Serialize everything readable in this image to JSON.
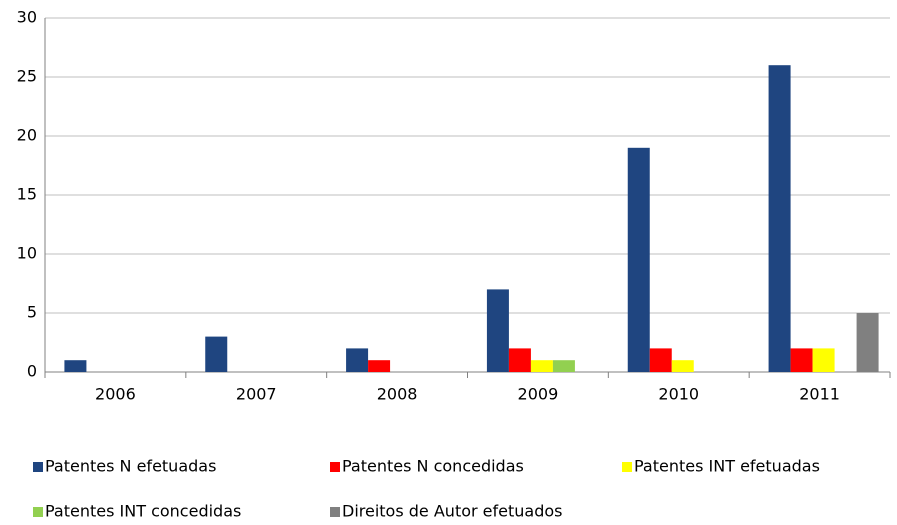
{
  "chart_data": {
    "type": "bar",
    "categories": [
      "2006",
      "2007",
      "2008",
      "2009",
      "2010",
      "2011"
    ],
    "series": [
      {
        "name": "Patentes N efetuadas",
        "color": "#1f4580",
        "values": [
          1,
          3,
          2,
          7,
          19,
          26
        ]
      },
      {
        "name": "Patentes N concedidas",
        "color": "#ff0000",
        "values": [
          0,
          0,
          1,
          2,
          2,
          2
        ]
      },
      {
        "name": "Patentes INT efetuadas",
        "color": "#ffff00",
        "values": [
          0,
          0,
          0,
          1,
          1,
          2
        ]
      },
      {
        "name": "Patentes INT concedidas",
        "color": "#92d050",
        "values": [
          0,
          0,
          0,
          1,
          0,
          0
        ]
      },
      {
        "name": "Direitos de Autor efetuados",
        "color": "#808080",
        "values": [
          0,
          0,
          0,
          0,
          0,
          5
        ]
      }
    ],
    "ylim": [
      0,
      30
    ],
    "yticks": [
      0,
      5,
      10,
      15,
      20,
      25,
      30
    ],
    "grid": true,
    "legend": "bottom"
  }
}
